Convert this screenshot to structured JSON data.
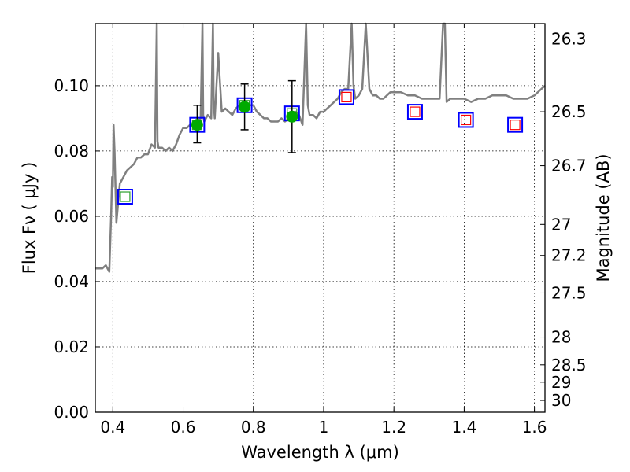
{
  "chart_data": {
    "type": "scatter",
    "title": "",
    "xlabel": "Wavelength  λ (μm)",
    "ylabel": "Flux  Fν  ( μJy )",
    "y2label": "Magnitude (AB)",
    "xlim": [
      0.35,
      1.63
    ],
    "ylim": [
      0.0,
      0.119
    ],
    "grid": true,
    "x_ticks": [
      0.4,
      0.6,
      0.8,
      1.0,
      1.2,
      1.4,
      1.6
    ],
    "x_tick_labels": [
      "0.4",
      "0.6",
      "0.8",
      "1",
      "1.2",
      "1.4",
      "1.6"
    ],
    "y_ticks": [
      0.0,
      0.02,
      0.04,
      0.06,
      0.08,
      0.1
    ],
    "y_tick_labels": [
      "0.00",
      "0.02",
      "0.04",
      "0.06",
      "0.08",
      "0.10"
    ],
    "y2_ticks": [
      {
        "label": "26.3",
        "flux": 0.1143
      },
      {
        "label": "26.5",
        "flux": 0.092
      },
      {
        "label": "26.7",
        "flux": 0.0755
      },
      {
        "label": "27",
        "flux": 0.0575
      },
      {
        "label": "27.2",
        "flux": 0.048
      },
      {
        "label": "27.5",
        "flux": 0.0365
      },
      {
        "label": "28",
        "flux": 0.023
      },
      {
        "label": "28.5",
        "flux": 0.0145
      },
      {
        "label": "29",
        "flux": 0.0092
      },
      {
        "label": "30",
        "flux": 0.0036
      }
    ],
    "series": [
      {
        "kind": "spectrum",
        "color": "#808080",
        "x": [
          0.35,
          0.37,
          0.38,
          0.39,
          0.395,
          0.398,
          0.4,
          0.402,
          0.405,
          0.41,
          0.42,
          0.43,
          0.44,
          0.45,
          0.46,
          0.47,
          0.48,
          0.49,
          0.5,
          0.51,
          0.52,
          0.525,
          0.527,
          0.53,
          0.54,
          0.55,
          0.56,
          0.57,
          0.58,
          0.59,
          0.6,
          0.61,
          0.62,
          0.63,
          0.64,
          0.65,
          0.655,
          0.657,
          0.66,
          0.67,
          0.68,
          0.685,
          0.687,
          0.69,
          0.7,
          0.71,
          0.72,
          0.73,
          0.74,
          0.75,
          0.76,
          0.77,
          0.78,
          0.79,
          0.8,
          0.81,
          0.82,
          0.83,
          0.84,
          0.85,
          0.86,
          0.87,
          0.88,
          0.89,
          0.9,
          0.91,
          0.92,
          0.93,
          0.94,
          0.95,
          0.955,
          0.96,
          0.97,
          0.98,
          0.99,
          1.0,
          1.01,
          1.02,
          1.03,
          1.04,
          1.05,
          1.06,
          1.07,
          1.08,
          1.085,
          1.09,
          1.1,
          1.11,
          1.12,
          1.13,
          1.14,
          1.15,
          1.16,
          1.17,
          1.18,
          1.19,
          1.2,
          1.22,
          1.24,
          1.26,
          1.28,
          1.3,
          1.32,
          1.33,
          1.34,
          1.345,
          1.35,
          1.36,
          1.38,
          1.4,
          1.42,
          1.44,
          1.46,
          1.48,
          1.5,
          1.52,
          1.54,
          1.56,
          1.58,
          1.6,
          1.62,
          1.63
        ],
        "y": [
          0.044,
          0.044,
          0.045,
          0.043,
          0.06,
          0.072,
          0.069,
          0.088,
          0.08,
          0.058,
          0.07,
          0.072,
          0.074,
          0.075,
          0.076,
          0.078,
          0.078,
          0.079,
          0.079,
          0.082,
          0.081,
          0.119,
          0.083,
          0.081,
          0.081,
          0.08,
          0.081,
          0.08,
          0.082,
          0.085,
          0.087,
          0.087,
          0.088,
          0.088,
          0.089,
          0.09,
          0.119,
          0.091,
          0.089,
          0.091,
          0.09,
          0.119,
          0.095,
          0.09,
          0.11,
          0.092,
          0.093,
          0.092,
          0.091,
          0.093,
          0.094,
          0.093,
          0.093,
          0.094,
          0.094,
          0.092,
          0.091,
          0.09,
          0.09,
          0.089,
          0.089,
          0.089,
          0.09,
          0.089,
          0.09,
          0.09,
          0.092,
          0.091,
          0.088,
          0.119,
          0.094,
          0.091,
          0.091,
          0.09,
          0.092,
          0.092,
          0.093,
          0.094,
          0.095,
          0.096,
          0.098,
          0.099,
          0.099,
          0.119,
          0.1,
          0.096,
          0.097,
          0.099,
          0.119,
          0.099,
          0.097,
          0.097,
          0.096,
          0.096,
          0.097,
          0.098,
          0.098,
          0.098,
          0.097,
          0.097,
          0.096,
          0.096,
          0.096,
          0.096,
          0.119,
          0.119,
          0.095,
          0.096,
          0.096,
          0.096,
          0.095,
          0.096,
          0.096,
          0.097,
          0.097,
          0.097,
          0.096,
          0.096,
          0.096,
          0.097,
          0.099,
          0.1
        ]
      },
      {
        "kind": "model-photometry-blue-squares",
        "color": "#0000ff",
        "x": [
          0.435,
          0.64,
          0.775,
          0.91,
          1.065,
          1.26,
          1.405,
          1.545
        ],
        "y": [
          0.066,
          0.088,
          0.094,
          0.0915,
          0.0965,
          0.092,
          0.0895,
          0.088
        ]
      },
      {
        "kind": "inner-squares",
        "colors": [
          "#2ca02c",
          "#2ca02c",
          "#2ca02c",
          "#2ca02c",
          "#ff0000",
          "#ff0000",
          "#ff0000",
          "#ff0000"
        ],
        "x": [
          0.435,
          0.64,
          0.775,
          0.91,
          1.065,
          1.26,
          1.405,
          1.545
        ],
        "y": [
          0.066,
          0.088,
          0.094,
          0.0915,
          0.0965,
          0.092,
          0.0895,
          0.088
        ]
      },
      {
        "kind": "observed-photometry",
        "color": "#00aa00",
        "x": [
          0.64,
          0.775,
          0.91
        ],
        "y": [
          0.088,
          0.0935,
          0.0905
        ],
        "yerr_low": [
          0.0055,
          0.007,
          0.011
        ],
        "yerr_high": [
          0.006,
          0.007,
          0.011
        ]
      }
    ]
  }
}
